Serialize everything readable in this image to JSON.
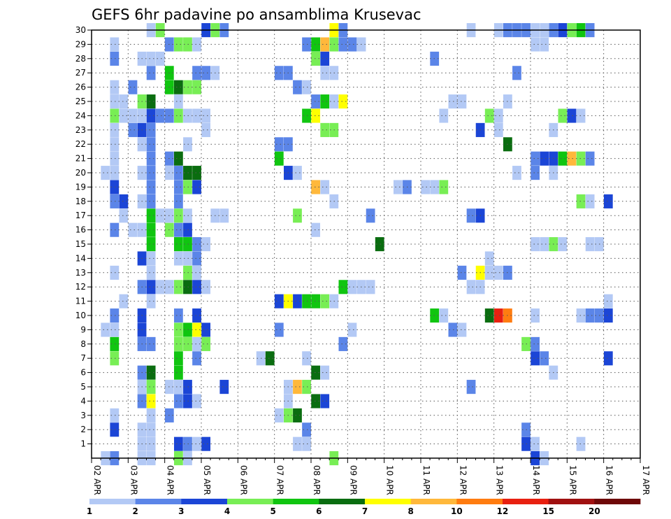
{
  "chart_data": {
    "type": "heatmap",
    "title": "GEFS 6hr padavine po ansamblima Krusevac",
    "xlabel": "",
    "ylabel": "",
    "x_tick_labels": [
      "02 APR",
      "03 APR",
      "04 APR",
      "05 APR",
      "06 APR",
      "07 APR",
      "08 APR",
      "09 APR",
      "10 APR",
      "11 APR",
      "12 APR",
      "13 APR",
      "14 APR",
      "15 APR",
      "16 APR",
      "17 APR"
    ],
    "y_tick_labels": [
      "1",
      "2",
      "3",
      "4",
      "5",
      "6",
      "7",
      "8",
      "9",
      "10",
      "11",
      "12",
      "13",
      "14",
      "15",
      "16",
      "17",
      "18",
      "19",
      "20",
      "21",
      "22",
      "23",
      "24",
      "25",
      "26",
      "27",
      "28",
      "29",
      "30"
    ],
    "x_range": [
      0,
      60
    ],
    "y_range": [
      0,
      30
    ],
    "grid": true,
    "legend": "bottom",
    "colorbar": {
      "labels": [
        "1",
        "2",
        "3",
        "4",
        "5",
        "6",
        "7",
        "8",
        "10",
        "12",
        "15",
        "20"
      ],
      "colors": [
        "#b3c9f5",
        "#5b85e8",
        "#1b45d6",
        "#78ee55",
        "#10c510",
        "#0a6d10",
        "#ffff00",
        "#ffb83b",
        "#ff7c10",
        "#e82010",
        "#a01010",
        "#6e0808"
      ]
    },
    "cells_format": "[member, time_step, color_class]",
    "cells": [
      [
        30,
        6,
        1
      ],
      [
        30,
        7,
        4
      ],
      [
        30,
        12,
        3
      ],
      [
        30,
        13,
        4
      ],
      [
        30,
        14,
        2
      ],
      [
        30,
        26,
        7
      ],
      [
        30,
        27,
        2
      ],
      [
        30,
        41,
        1
      ],
      [
        30,
        44,
        1
      ],
      [
        30,
        45,
        2
      ],
      [
        30,
        46,
        2
      ],
      [
        30,
        47,
        2
      ],
      [
        30,
        48,
        1
      ],
      [
        30,
        49,
        1
      ],
      [
        30,
        50,
        2
      ],
      [
        30,
        51,
        3
      ],
      [
        30,
        52,
        4
      ],
      [
        30,
        53,
        5
      ],
      [
        30,
        54,
        2
      ],
      [
        29,
        2,
        1
      ],
      [
        29,
        8,
        2
      ],
      [
        29,
        9,
        4
      ],
      [
        29,
        10,
        4
      ],
      [
        29,
        11,
        1
      ],
      [
        29,
        23,
        2
      ],
      [
        29,
        24,
        5
      ],
      [
        29,
        25,
        8
      ],
      [
        29,
        26,
        4
      ],
      [
        29,
        27,
        2
      ],
      [
        29,
        28,
        2
      ],
      [
        29,
        29,
        1
      ],
      [
        29,
        48,
        1
      ],
      [
        29,
        49,
        1
      ],
      [
        28,
        2,
        2
      ],
      [
        28,
        5,
        1
      ],
      [
        28,
        6,
        1
      ],
      [
        28,
        7,
        1
      ],
      [
        28,
        24,
        4
      ],
      [
        28,
        25,
        3
      ],
      [
        28,
        37,
        2
      ],
      [
        27,
        6,
        2
      ],
      [
        27,
        8,
        5
      ],
      [
        27,
        11,
        2
      ],
      [
        27,
        12,
        2
      ],
      [
        27,
        13,
        1
      ],
      [
        27,
        20,
        2
      ],
      [
        27,
        21,
        2
      ],
      [
        27,
        25,
        1
      ],
      [
        27,
        26,
        1
      ],
      [
        27,
        46,
        2
      ],
      [
        26,
        2,
        1
      ],
      [
        26,
        4,
        2
      ],
      [
        26,
        8,
        5
      ],
      [
        26,
        9,
        6
      ],
      [
        26,
        10,
        4
      ],
      [
        26,
        11,
        4
      ],
      [
        26,
        22,
        2
      ],
      [
        26,
        23,
        1
      ],
      [
        25,
        2,
        1
      ],
      [
        25,
        3,
        1
      ],
      [
        25,
        5,
        4
      ],
      [
        25,
        6,
        6
      ],
      [
        25,
        9,
        1
      ],
      [
        25,
        24,
        2
      ],
      [
        25,
        25,
        5
      ],
      [
        25,
        26,
        1
      ],
      [
        25,
        27,
        7
      ],
      [
        25,
        39,
        1
      ],
      [
        25,
        40,
        1
      ],
      [
        25,
        45,
        1
      ],
      [
        24,
        2,
        4
      ],
      [
        24,
        3,
        1
      ],
      [
        24,
        4,
        1
      ],
      [
        24,
        5,
        1
      ],
      [
        24,
        6,
        3
      ],
      [
        24,
        7,
        2
      ],
      [
        24,
        8,
        2
      ],
      [
        24,
        9,
        4
      ],
      [
        24,
        10,
        1
      ],
      [
        24,
        11,
        1
      ],
      [
        24,
        12,
        1
      ],
      [
        24,
        23,
        5
      ],
      [
        24,
        24,
        7
      ],
      [
        24,
        38,
        1
      ],
      [
        24,
        43,
        4
      ],
      [
        24,
        44,
        1
      ],
      [
        24,
        51,
        4
      ],
      [
        24,
        52,
        3
      ],
      [
        24,
        53,
        1
      ],
      [
        23,
        2,
        1
      ],
      [
        23,
        4,
        2
      ],
      [
        23,
        5,
        3
      ],
      [
        23,
        6,
        2
      ],
      [
        23,
        12,
        1
      ],
      [
        23,
        25,
        4
      ],
      [
        23,
        26,
        4
      ],
      [
        23,
        42,
        3
      ],
      [
        23,
        44,
        1
      ],
      [
        23,
        50,
        1
      ],
      [
        22,
        2,
        1
      ],
      [
        22,
        5,
        1
      ],
      [
        22,
        6,
        2
      ],
      [
        22,
        10,
        1
      ],
      [
        22,
        20,
        2
      ],
      [
        22,
        21,
        2
      ],
      [
        22,
        45,
        6
      ],
      [
        21,
        2,
        1
      ],
      [
        21,
        6,
        2
      ],
      [
        21,
        8,
        2
      ],
      [
        21,
        9,
        6
      ],
      [
        21,
        20,
        5
      ],
      [
        21,
        48,
        2
      ],
      [
        21,
        49,
        3
      ],
      [
        21,
        50,
        3
      ],
      [
        21,
        51,
        5
      ],
      [
        21,
        52,
        8
      ],
      [
        21,
        53,
        4
      ],
      [
        21,
        54,
        2
      ],
      [
        20,
        1,
        1
      ],
      [
        20,
        2,
        1
      ],
      [
        20,
        5,
        1
      ],
      [
        20,
        6,
        2
      ],
      [
        20,
        8,
        1
      ],
      [
        20,
        9,
        2
      ],
      [
        20,
        10,
        6
      ],
      [
        20,
        11,
        6
      ],
      [
        20,
        21,
        3
      ],
      [
        20,
        22,
        1
      ],
      [
        20,
        46,
        1
      ],
      [
        20,
        48,
        2
      ],
      [
        20,
        50,
        1
      ],
      [
        19,
        2,
        3
      ],
      [
        19,
        6,
        2
      ],
      [
        19,
        9,
        2
      ],
      [
        19,
        10,
        4
      ],
      [
        19,
        11,
        3
      ],
      [
        19,
        24,
        8
      ],
      [
        19,
        25,
        1
      ],
      [
        19,
        33,
        1
      ],
      [
        19,
        34,
        2
      ],
      [
        19,
        36,
        1
      ],
      [
        19,
        37,
        1
      ],
      [
        19,
        38,
        4
      ],
      [
        18,
        2,
        2
      ],
      [
        18,
        3,
        3
      ],
      [
        18,
        5,
        1
      ],
      [
        18,
        6,
        2
      ],
      [
        18,
        9,
        2
      ],
      [
        18,
        26,
        1
      ],
      [
        18,
        53,
        4
      ],
      [
        18,
        54,
        1
      ],
      [
        18,
        56,
        3
      ],
      [
        17,
        3,
        1
      ],
      [
        17,
        6,
        5
      ],
      [
        17,
        7,
        1
      ],
      [
        17,
        8,
        1
      ],
      [
        17,
        9,
        4
      ],
      [
        17,
        10,
        1
      ],
      [
        17,
        13,
        1
      ],
      [
        17,
        14,
        1
      ],
      [
        17,
        22,
        4
      ],
      [
        17,
        30,
        2
      ],
      [
        17,
        41,
        2
      ],
      [
        17,
        42,
        3
      ],
      [
        16,
        2,
        2
      ],
      [
        16,
        4,
        1
      ],
      [
        16,
        5,
        1
      ],
      [
        16,
        6,
        5
      ],
      [
        16,
        8,
        4
      ],
      [
        16,
        9,
        2
      ],
      [
        16,
        10,
        3
      ],
      [
        16,
        24,
        1
      ],
      [
        15,
        6,
        5
      ],
      [
        15,
        9,
        5
      ],
      [
        15,
        10,
        5
      ],
      [
        15,
        11,
        2
      ],
      [
        15,
        12,
        1
      ],
      [
        15,
        31,
        6
      ],
      [
        15,
        48,
        1
      ],
      [
        15,
        49,
        1
      ],
      [
        15,
        50,
        4
      ],
      [
        15,
        51,
        1
      ],
      [
        15,
        54,
        1
      ],
      [
        15,
        55,
        1
      ],
      [
        14,
        5,
        3
      ],
      [
        14,
        6,
        1
      ],
      [
        14,
        9,
        1
      ],
      [
        14,
        10,
        1
      ],
      [
        14,
        11,
        2
      ],
      [
        14,
        43,
        1
      ],
      [
        13,
        2,
        1
      ],
      [
        13,
        6,
        1
      ],
      [
        13,
        10,
        4
      ],
      [
        13,
        11,
        1
      ],
      [
        13,
        40,
        2
      ],
      [
        13,
        42,
        7
      ],
      [
        13,
        43,
        1
      ],
      [
        13,
        44,
        1
      ],
      [
        13,
        45,
        2
      ],
      [
        12,
        5,
        2
      ],
      [
        12,
        6,
        3
      ],
      [
        12,
        7,
        1
      ],
      [
        12,
        8,
        1
      ],
      [
        12,
        9,
        4
      ],
      [
        12,
        10,
        6
      ],
      [
        12,
        11,
        3
      ],
      [
        12,
        12,
        1
      ],
      [
        12,
        27,
        5
      ],
      [
        12,
        28,
        1
      ],
      [
        12,
        29,
        1
      ],
      [
        12,
        30,
        1
      ],
      [
        12,
        41,
        1
      ],
      [
        12,
        42,
        1
      ],
      [
        11,
        3,
        1
      ],
      [
        11,
        6,
        1
      ],
      [
        11,
        20,
        3
      ],
      [
        11,
        21,
        7
      ],
      [
        11,
        22,
        3
      ],
      [
        11,
        23,
        5
      ],
      [
        11,
        24,
        5
      ],
      [
        11,
        25,
        4
      ],
      [
        11,
        26,
        1
      ],
      [
        11,
        56,
        1
      ],
      [
        10,
        2,
        2
      ],
      [
        10,
        5,
        3
      ],
      [
        10,
        9,
        2
      ],
      [
        10,
        11,
        3
      ],
      [
        10,
        37,
        5
      ],
      [
        10,
        38,
        1
      ],
      [
        10,
        43,
        6
      ],
      [
        10,
        44,
        10
      ],
      [
        10,
        45,
        9
      ],
      [
        10,
        48,
        1
      ],
      [
        10,
        53,
        1
      ],
      [
        10,
        54,
        2
      ],
      [
        10,
        55,
        2
      ],
      [
        10,
        56,
        3
      ],
      [
        9,
        1,
        1
      ],
      [
        9,
        2,
        1
      ],
      [
        9,
        5,
        3
      ],
      [
        9,
        9,
        4
      ],
      [
        9,
        10,
        5
      ],
      [
        9,
        11,
        7
      ],
      [
        9,
        12,
        3
      ],
      [
        9,
        20,
        2
      ],
      [
        9,
        28,
        1
      ],
      [
        9,
        39,
        2
      ],
      [
        9,
        40,
        1
      ],
      [
        8,
        2,
        5
      ],
      [
        8,
        5,
        2
      ],
      [
        8,
        6,
        2
      ],
      [
        8,
        9,
        4
      ],
      [
        8,
        10,
        4
      ],
      [
        8,
        11,
        1
      ],
      [
        8,
        12,
        4
      ],
      [
        8,
        27,
        2
      ],
      [
        8,
        47,
        4
      ],
      [
        8,
        48,
        2
      ],
      [
        7,
        2,
        4
      ],
      [
        7,
        9,
        5
      ],
      [
        7,
        11,
        2
      ],
      [
        7,
        18,
        1
      ],
      [
        7,
        19,
        6
      ],
      [
        7,
        23,
        1
      ],
      [
        7,
        48,
        3
      ],
      [
        7,
        49,
        2
      ],
      [
        7,
        56,
        3
      ],
      [
        6,
        5,
        2
      ],
      [
        6,
        6,
        6
      ],
      [
        6,
        9,
        5
      ],
      [
        6,
        24,
        6
      ],
      [
        6,
        25,
        1
      ],
      [
        6,
        50,
        1
      ],
      [
        5,
        5,
        1
      ],
      [
        5,
        6,
        4
      ],
      [
        5,
        8,
        1
      ],
      [
        5,
        9,
        1
      ],
      [
        5,
        10,
        3
      ],
      [
        5,
        14,
        3
      ],
      [
        5,
        21,
        1
      ],
      [
        5,
        22,
        8
      ],
      [
        5,
        23,
        4
      ],
      [
        5,
        41,
        2
      ],
      [
        4,
        5,
        2
      ],
      [
        4,
        6,
        7
      ],
      [
        4,
        9,
        2
      ],
      [
        4,
        10,
        3
      ],
      [
        4,
        11,
        1
      ],
      [
        4,
        21,
        1
      ],
      [
        4,
        24,
        6
      ],
      [
        4,
        25,
        3
      ],
      [
        3,
        2,
        1
      ],
      [
        3,
        6,
        1
      ],
      [
        3,
        8,
        2
      ],
      [
        3,
        20,
        1
      ],
      [
        3,
        21,
        4
      ],
      [
        3,
        22,
        6
      ],
      [
        2,
        2,
        3
      ],
      [
        2,
        5,
        1
      ],
      [
        2,
        6,
        1
      ],
      [
        2,
        23,
        2
      ],
      [
        2,
        47,
        2
      ],
      [
        1,
        5,
        1
      ],
      [
        1,
        6,
        1
      ],
      [
        1,
        9,
        3
      ],
      [
        1,
        10,
        2
      ],
      [
        1,
        11,
        1
      ],
      [
        1,
        12,
        3
      ],
      [
        1,
        22,
        1
      ],
      [
        1,
        23,
        1
      ],
      [
        1,
        47,
        3
      ],
      [
        1,
        48,
        1
      ],
      [
        1,
        53,
        1
      ],
      [
        0,
        1,
        1
      ],
      [
        0,
        2,
        2
      ],
      [
        0,
        5,
        1
      ],
      [
        0,
        6,
        1
      ],
      [
        0,
        9,
        4
      ],
      [
        0,
        10,
        1
      ],
      [
        0,
        26,
        4
      ],
      [
        0,
        48,
        3
      ],
      [
        0,
        49,
        1
      ]
    ]
  }
}
